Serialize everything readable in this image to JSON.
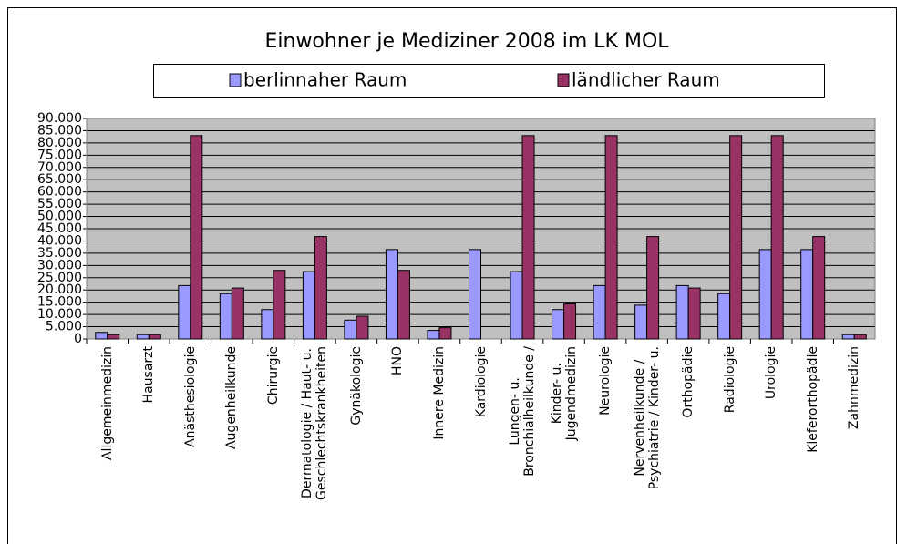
{
  "chart_data": {
    "type": "bar",
    "title": "Einwohner je Mediziner 2008 im LK MOL",
    "categories": [
      "Allgemeinmedizin",
      "Hausarzt",
      "Anästhesiologie",
      "Augenheilkunde",
      "Chirurgie",
      "Dermatologie / Haut- u.\nGeschlechtskrankheiten",
      "Gynäkologie",
      "HNO",
      "Innere Medizin",
      "Kardiologie",
      "Lungen- u.\nBronchialheilkunde /",
      "Kinder- u.\nJugendmedizin",
      "Neurologie",
      "Nervenheilkunde /\nPsychiatrie / Kinder- u.",
      "Orthopädie",
      "Radiologie",
      "Urologie",
      "Kieferorthopädie",
      "Zahnmedizin"
    ],
    "series": [
      {
        "name": "berlinnaher Raum",
        "color": "#9999ff",
        "values": [
          2700,
          1800,
          21800,
          18500,
          12000,
          27500,
          7700,
          36500,
          3500,
          36500,
          27500,
          12000,
          21800,
          13800,
          21800,
          18500,
          36500,
          36500,
          1800
        ]
      },
      {
        "name": "ländlicher Raum",
        "color": "#993366",
        "values": [
          1800,
          1800,
          83000,
          20800,
          28000,
          41800,
          9300,
          28000,
          4600,
          null,
          83000,
          14300,
          83000,
          41800,
          20800,
          83000,
          83000,
          41800,
          1800
        ]
      }
    ],
    "ylim": [
      0,
      90000
    ],
    "yticks": [
      0,
      {
        "value": 5000,
        "label": "5.000"
      },
      {
        "value": 10000,
        "label": "10.000"
      },
      {
        "value": 15000,
        "label": "15.000"
      },
      {
        "value": 20000,
        "label": "20.000"
      },
      {
        "value": 25000,
        "label": "25.000"
      },
      {
        "value": 30000,
        "label": "30.000"
      },
      {
        "value": 35000,
        "label": "35.000"
      },
      {
        "value": 40000,
        "label": "40.000"
      },
      {
        "value": 45000,
        "label": "45.000"
      },
      {
        "value": 50000,
        "label": "50.000"
      },
      {
        "value": 55000,
        "label": "55.000"
      },
      {
        "value": 60000,
        "label": "60.000"
      },
      {
        "value": 65000,
        "label": "65.000"
      },
      {
        "value": 70000,
        "label": "70.000"
      },
      {
        "value": 75000,
        "label": "75.000"
      },
      {
        "value": 80000,
        "label": "80.000"
      },
      {
        "value": 85000,
        "label": "85.000"
      },
      {
        "value": 90000,
        "label": "90.000"
      }
    ],
    "grid": true
  }
}
